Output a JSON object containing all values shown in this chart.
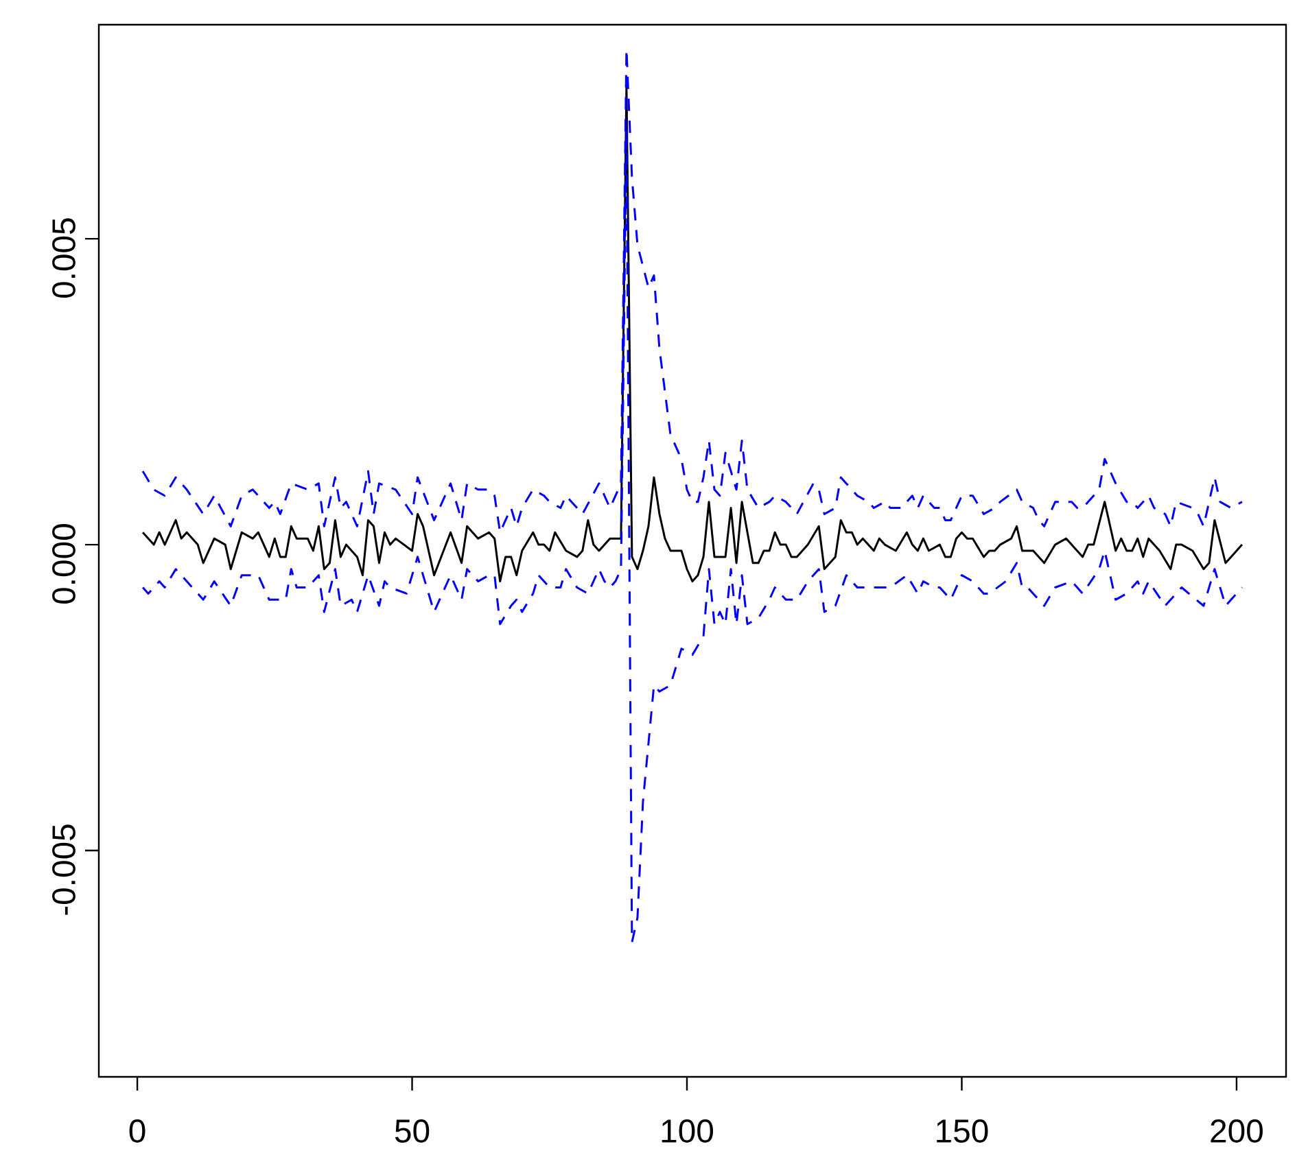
{
  "chart_data": {
    "type": "line",
    "xlim": [
      -7,
      209
    ],
    "ylim": [
      -0.0087,
      0.0085
    ],
    "xticks": [
      0,
      50,
      100,
      150,
      200
    ],
    "yticks": [
      {
        "value": -0.005,
        "label": "-0.005"
      },
      {
        "value": 0,
        "label": "0.000"
      },
      {
        "value": 0.005,
        "label": "0.005"
      }
    ],
    "series": [
      {
        "color": "#000000",
        "line_style": "solid",
        "x": [
          1,
          3,
          4,
          5,
          7,
          8,
          9,
          11,
          12,
          14,
          16,
          17,
          19,
          21,
          22,
          24,
          25,
          26,
          27,
          28,
          29,
          30,
          31,
          32,
          33,
          34,
          35,
          36,
          37,
          38,
          39,
          40,
          41,
          42,
          43,
          44,
          45,
          46,
          47,
          50,
          51,
          52,
          54,
          57,
          59,
          60,
          62,
          64,
          65,
          66,
          67,
          68,
          69,
          70,
          72,
          73,
          74,
          75,
          76,
          78,
          80,
          81,
          82,
          83,
          84,
          86,
          88,
          89,
          90,
          91,
          92,
          93,
          94,
          95,
          96,
          97,
          99,
          100,
          101,
          102,
          103,
          104,
          105,
          107,
          108,
          109,
          110,
          111,
          112,
          113,
          114,
          115,
          116,
          117,
          118,
          119,
          120,
          122,
          124,
          125,
          127,
          128,
          129,
          130,
          131,
          132,
          134,
          135,
          136,
          138,
          140,
          141,
          142,
          143,
          144,
          146,
          147,
          148,
          149,
          150,
          151,
          152,
          154,
          155,
          156,
          157,
          159,
          160,
          161,
          162,
          163,
          165,
          167,
          169,
          172,
          173,
          174,
          176,
          178,
          179,
          180,
          181,
          182,
          183,
          184,
          186,
          188,
          189,
          190,
          192,
          194,
          195,
          196,
          198,
          199,
          201
        ],
        "values": [
          0.0002,
          0.0,
          0.0002,
          0.0,
          0.0004,
          0.0001,
          0.0002,
          0.0,
          -0.0003,
          0.0001,
          0.0,
          -0.0004,
          0.0002,
          0.0001,
          0.0002,
          -0.0002,
          0.0001,
          -0.0002,
          -0.0002,
          0.0003,
          0.0001,
          0.0001,
          0.0001,
          -0.0001,
          0.0003,
          -0.0004,
          -0.0003,
          0.0004,
          -0.0002,
          0.0,
          -0.0001,
          -0.0002,
          -0.0005,
          0.0004,
          0.0003,
          -0.0003,
          0.0002,
          0.0,
          0.0001,
          -0.0001,
          0.0005,
          0.0003,
          -0.0005,
          0.0002,
          -0.0003,
          0.0003,
          0.0001,
          0.0002,
          0.0001,
          -0.0006,
          -0.0002,
          -0.0002,
          -0.0005,
          -0.0001,
          0.0002,
          0.0,
          0.0,
          -0.0001,
          0.0002,
          -0.0001,
          -0.0002,
          -0.0001,
          0.0004,
          0.0,
          -0.0001,
          0.0001,
          0.0001,
          0.0075,
          -0.0002,
          -0.0004,
          -0.0001,
          0.0003,
          0.0011,
          0.0005,
          0.0001,
          -0.0001,
          -0.0001,
          -0.0004,
          -0.0006,
          -0.0005,
          -0.0002,
          0.0007,
          -0.0002,
          -0.0002,
          0.0006,
          -0.0003,
          0.0007,
          0.0002,
          -0.0003,
          -0.0003,
          -0.0001,
          -0.0001,
          0.0002,
          0.0,
          0.0,
          -0.0002,
          -0.0002,
          0.0,
          0.0003,
          -0.0004,
          -0.0002,
          0.0004,
          0.0002,
          0.0002,
          0.0,
          0.0001,
          -0.0001,
          0.0001,
          0.0,
          -0.0001,
          0.0002,
          0.0,
          -0.0001,
          0.0001,
          -0.0001,
          0.0,
          -0.0002,
          -0.0002,
          0.0001,
          0.0002,
          0.0001,
          0.0001,
          -0.0002,
          -0.0001,
          -0.0001,
          0.0,
          0.0001,
          0.0003,
          -0.0001,
          -0.0001,
          -0.0001,
          -0.0003,
          0.0,
          0.0001,
          -0.0002,
          0.0,
          0.0,
          0.0007,
          -0.0001,
          0.0001,
          -0.0001,
          -0.0001,
          0.0001,
          -0.0002,
          0.0001,
          -0.0001,
          -0.0004,
          0.0,
          0.0,
          -0.0001,
          -0.0004,
          -0.0003,
          0.0004,
          -0.0003,
          -0.0002,
          0.0
        ]
      },
      {
        "color": "#0000ff",
        "line_style": "dashed",
        "x": [
          1,
          3,
          5,
          7,
          9,
          12,
          14,
          17,
          19,
          21,
          24,
          25,
          26,
          28,
          31,
          33,
          34,
          36,
          37,
          38,
          40,
          42,
          43,
          44,
          47,
          50,
          51,
          54,
          57,
          59,
          60,
          62,
          64,
          65,
          66,
          68,
          69,
          70,
          72,
          74,
          75,
          77,
          78,
          80,
          81,
          84,
          86,
          88,
          89,
          90,
          91,
          93,
          94,
          95,
          97,
          99,
          100,
          101,
          102,
          103,
          104,
          105,
          106,
          107,
          108,
          109,
          110,
          111,
          113,
          115,
          116,
          118,
          120,
          123,
          124,
          125,
          127,
          128,
          129,
          131,
          133,
          134,
          136,
          137,
          139,
          141,
          142,
          143,
          145,
          146,
          147,
          148,
          150,
          152,
          154,
          156,
          157,
          160,
          161,
          163,
          164,
          165,
          167,
          170,
          171,
          172,
          175,
          176,
          178,
          180,
          181,
          182,
          184,
          185,
          187,
          188,
          189,
          192,
          193,
          194,
          196,
          197,
          199,
          201
        ],
        "values": [
          0.0012,
          0.0009,
          0.0008,
          0.0011,
          0.0009,
          0.0005,
          0.0008,
          0.0003,
          0.0008,
          0.0009,
          0.0006,
          0.0007,
          0.0005,
          0.001,
          0.0009,
          0.001,
          0.0003,
          0.0011,
          0.0006,
          0.0007,
          0.0003,
          0.0012,
          0.0005,
          0.001,
          0.0009,
          0.0005,
          0.0011,
          0.0004,
          0.001,
          0.0004,
          0.001,
          0.0009,
          0.0009,
          0.0008,
          0.0002,
          0.0006,
          0.0003,
          0.0006,
          0.0009,
          0.0008,
          0.0007,
          0.0006,
          0.0008,
          0.0006,
          0.0005,
          0.001,
          0.0006,
          0.001,
          0.0081,
          0.006,
          0.0049,
          0.0042,
          0.0044,
          0.0032,
          0.0018,
          0.0014,
          0.0009,
          0.0007,
          0.0007,
          0.0011,
          0.0017,
          0.0009,
          0.0008,
          0.0015,
          0.0012,
          0.0009,
          0.0017,
          0.0009,
          0.0006,
          0.0007,
          0.0008,
          0.0007,
          0.0005,
          0.001,
          0.0009,
          0.0005,
          0.0006,
          0.0011,
          0.001,
          0.0008,
          0.0007,
          0.0006,
          0.0007,
          0.0006,
          0.0006,
          0.0008,
          0.0006,
          0.0008,
          0.0006,
          0.0006,
          0.0004,
          0.0004,
          0.0008,
          0.0008,
          0.0005,
          0.0006,
          0.0007,
          0.0009,
          0.0007,
          0.0006,
          0.0004,
          0.0003,
          0.0007,
          0.0007,
          0.0006,
          0.0006,
          0.0009,
          0.0014,
          0.001,
          0.0007,
          0.0007,
          0.0006,
          0.0008,
          0.0006,
          0.0005,
          0.0003,
          0.0007,
          0.0006,
          0.0005,
          0.0003,
          0.0011,
          0.0007,
          0.0006,
          0.0007
        ]
      },
      {
        "color": "#0000ff",
        "line_style": "dashed",
        "x": [
          1,
          2,
          4,
          5,
          7,
          9,
          12,
          14,
          17,
          19,
          22,
          24,
          27,
          28,
          29,
          31,
          33,
          34,
          36,
          37,
          39,
          40,
          42,
          44,
          45,
          46,
          49,
          51,
          54,
          57,
          59,
          60,
          62,
          64,
          65,
          66,
          68,
          69,
          70,
          72,
          73,
          75,
          77,
          78,
          80,
          82,
          84,
          85,
          86,
          87,
          88,
          89,
          90,
          91,
          92,
          94,
          95,
          97,
          99,
          101,
          103,
          104,
          105,
          106,
          107,
          108,
          109,
          110,
          111,
          113,
          115,
          116,
          118,
          120,
          122,
          124,
          125,
          127,
          129,
          130,
          131,
          134,
          137,
          140,
          142,
          143,
          145,
          146,
          148,
          150,
          152,
          154,
          155,
          158,
          160,
          161,
          162,
          163,
          165,
          167,
          170,
          172,
          175,
          176,
          178,
          180,
          182,
          183,
          184,
          187,
          189,
          190,
          194,
          196,
          198,
          199,
          201
        ],
        "values": [
          -0.0007,
          -0.0008,
          -0.0006,
          -0.0007,
          -0.0004,
          -0.0006,
          -0.0009,
          -0.0006,
          -0.001,
          -0.0005,
          -0.0005,
          -0.0009,
          -0.0009,
          -0.0004,
          -0.0007,
          -0.0007,
          -0.0005,
          -0.0011,
          -0.0004,
          -0.001,
          -0.0009,
          -0.0011,
          -0.0005,
          -0.001,
          -0.0006,
          -0.0007,
          -0.0008,
          -0.0002,
          -0.0011,
          -0.0005,
          -0.0009,
          -0.0004,
          -0.0006,
          -0.0005,
          -0.0005,
          -0.0013,
          -0.001,
          -0.0009,
          -0.0011,
          -0.0008,
          -0.0005,
          -0.0007,
          -0.0007,
          -0.0004,
          -0.0007,
          -0.0008,
          -0.0004,
          -0.0006,
          -0.0007,
          -0.0006,
          -0.0004,
          0.0068,
          -0.0065,
          -0.0061,
          -0.0042,
          -0.0023,
          -0.0024,
          -0.0023,
          -0.0017,
          -0.0018,
          -0.0015,
          -0.0004,
          -0.0013,
          -0.0011,
          -0.0013,
          -0.0004,
          -0.0013,
          -0.0005,
          -0.0013,
          -0.0012,
          -0.0009,
          -0.0007,
          -0.0009,
          -0.0009,
          -0.0006,
          -0.0004,
          -0.0011,
          -0.001,
          -0.0005,
          -0.0006,
          -0.0007,
          -0.0007,
          -0.0007,
          -0.0005,
          -0.0008,
          -0.0006,
          -0.0007,
          -0.0007,
          -0.0009,
          -0.0005,
          -0.0006,
          -0.0008,
          -0.0008,
          -0.0006,
          -0.0003,
          -0.0007,
          -0.0007,
          -0.0008,
          -0.001,
          -0.0007,
          -0.0006,
          -0.0008,
          -0.0004,
          -0.0001,
          -0.0009,
          -0.0008,
          -0.0006,
          -0.0008,
          -0.0006,
          -0.001,
          -0.0008,
          -0.0007,
          -0.001,
          -0.0004,
          -0.001,
          -0.0009,
          -0.0007
        ]
      }
    ]
  }
}
